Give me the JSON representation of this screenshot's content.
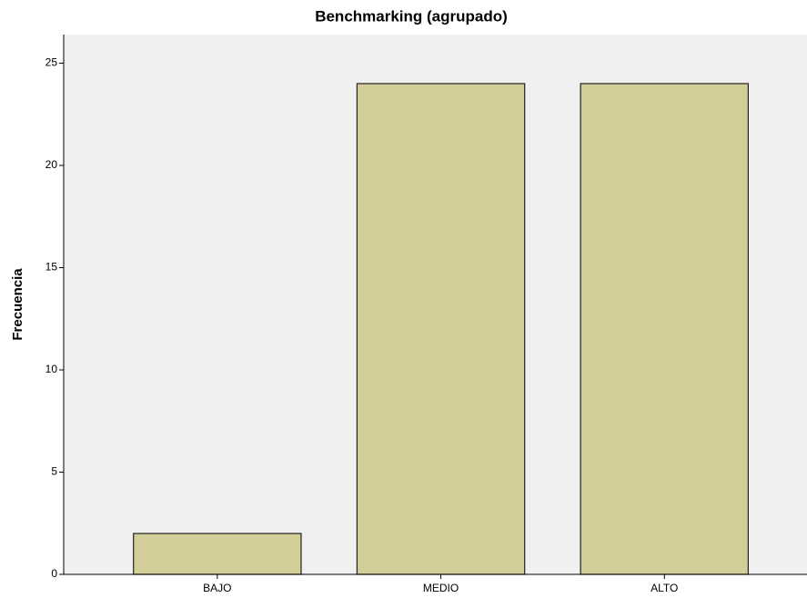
{
  "chart_data": {
    "type": "bar",
    "title": "Benchmarking (agrupado)",
    "y_label": "Frecuencia",
    "categories": [
      "BAJO",
      "MEDIO",
      "ALTO"
    ],
    "values": [
      2,
      24,
      24
    ],
    "color": "#d3ce97",
    "ylim": [
      0,
      26.4
    ],
    "yticks": [
      0,
      5,
      10,
      15,
      20,
      25
    ]
  }
}
